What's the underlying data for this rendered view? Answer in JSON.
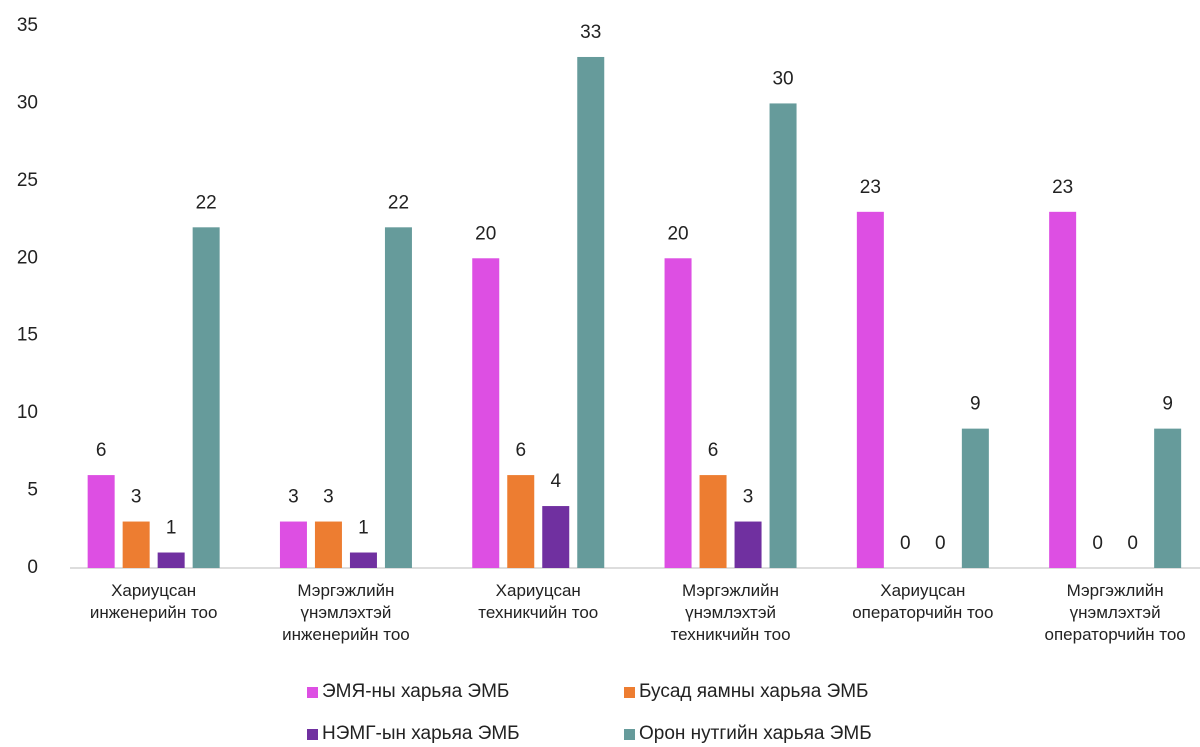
{
  "chart_data": {
    "type": "bar",
    "categories": [
      "Хариуцсан\nинженерийн тоо",
      "Мэргэжлийн\nүнэмлэхтэй\nинженерийн тоо",
      "Хариуцсан\nтехникчийн тоо",
      "Мэргэжлийн\nүнэмлэхтэй\nтехникчийн тоо",
      "Хариуцсан\nоператорчийн тоо",
      "Мэргэжлийн\nүнэмлэхтэй\nоператорчийн тоо"
    ],
    "series": [
      {
        "name": "ЭМЯ-ны харьяа ЭМБ",
        "color": "#dd4fe3",
        "values": [
          6,
          3,
          20,
          20,
          23,
          23
        ]
      },
      {
        "name": "Бусад яамны харьяа ЭМБ",
        "color": "#ed7d31",
        "values": [
          3,
          3,
          6,
          6,
          0,
          0
        ]
      },
      {
        "name": "НЭМГ-ын харьяа ЭМБ",
        "color": "#7030a0",
        "values": [
          1,
          1,
          4,
          3,
          0,
          0
        ]
      },
      {
        "name": "Орон нутгийн харьяа ЭМБ",
        "color": "#669b9b",
        "values": [
          22,
          22,
          33,
          30,
          9,
          9
        ]
      }
    ],
    "ylim": [
      0,
      35
    ],
    "yticks": [
      0,
      5,
      10,
      15,
      20,
      25,
      30,
      35
    ],
    "grid": false,
    "legend": "bottom"
  }
}
